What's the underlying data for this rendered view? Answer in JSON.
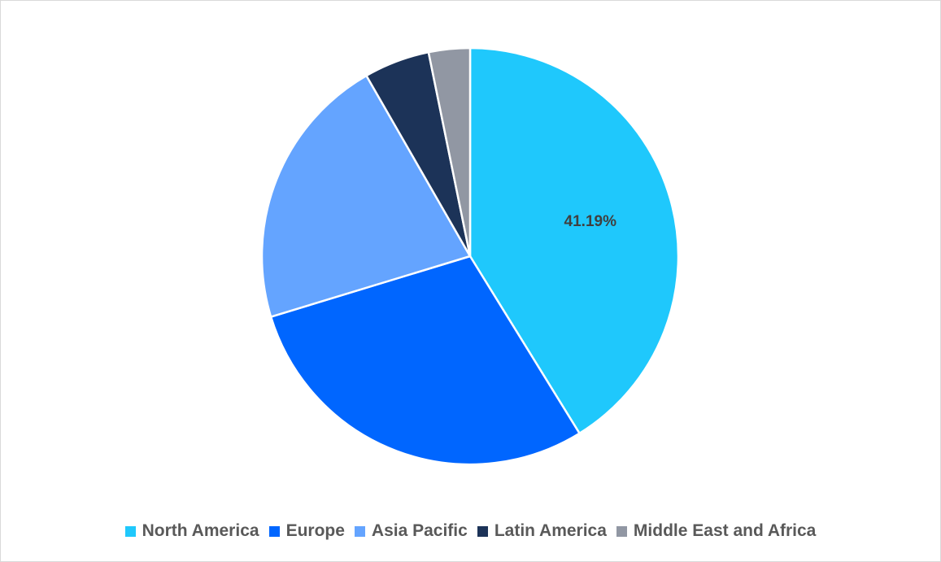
{
  "chart_data": {
    "type": "pie",
    "categories": [
      "North America",
      "Europe",
      "Asia Pacific",
      "Latin America",
      "Middle East and Africa"
    ],
    "values": [
      41.19,
      29.1,
      21.4,
      5.1,
      3.2
    ],
    "colors": [
      "#1fc8fc",
      "#0066ff",
      "#64a4ff",
      "#1c3358",
      "#9197a3"
    ],
    "data_labels": [
      "41.19%",
      "",
      "",
      "",
      ""
    ],
    "legend_position": "bottom",
    "start_angle": "12 o'clock",
    "direction": "clockwise"
  }
}
